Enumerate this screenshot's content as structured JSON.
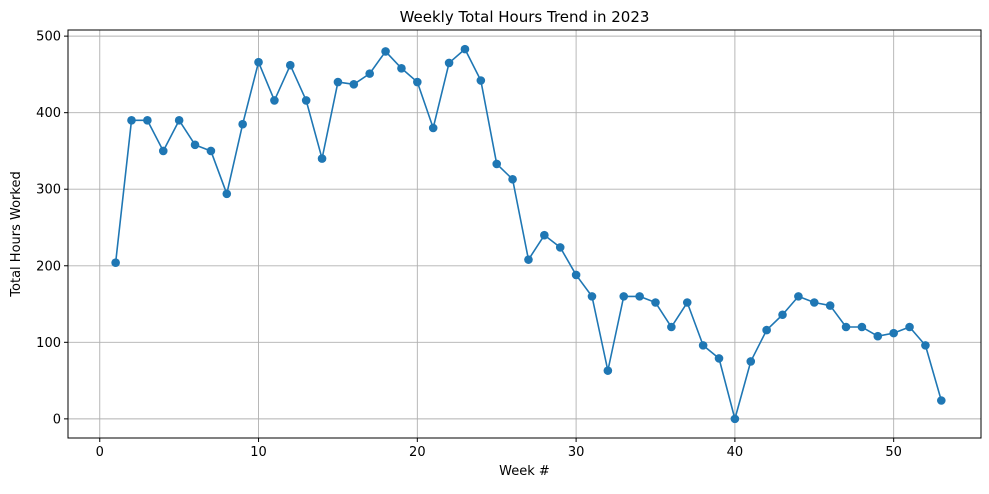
{
  "chart_data": {
    "type": "line",
    "title": "Weekly Total Hours Trend in 2023",
    "xlabel": "Week #",
    "ylabel": "Total Hours Worked",
    "xlim": [
      -2,
      55.5
    ],
    "ylim": [
      -25,
      508
    ],
    "xticks": [
      0,
      10,
      20,
      30,
      40,
      50
    ],
    "yticks": [
      0,
      100,
      200,
      300,
      400,
      500
    ],
    "grid": true,
    "legend": "none",
    "marker": "circle",
    "series": [
      {
        "color": "#1f77b4",
        "x": [
          1,
          2,
          3,
          4,
          5,
          6,
          7,
          8,
          9,
          10,
          11,
          12,
          13,
          14,
          15,
          16,
          17,
          18,
          19,
          20,
          21,
          22,
          23,
          24,
          25,
          26,
          27,
          28,
          29,
          30,
          31,
          32,
          33,
          34,
          35,
          36,
          37,
          38,
          39,
          40,
          41,
          42,
          43,
          44,
          45,
          46,
          47,
          48,
          49,
          50,
          51,
          52,
          53
        ],
        "y": [
          204,
          390,
          390,
          350,
          390,
          358,
          350,
          294,
          385,
          466,
          416,
          462,
          416,
          340,
          440,
          437,
          451,
          480,
          458,
          440,
          380,
          465,
          483,
          442,
          333,
          313,
          208,
          240,
          224,
          188,
          160,
          63,
          160,
          160,
          152,
          120,
          152,
          96,
          79,
          0,
          75,
          116,
          136,
          160,
          152,
          148,
          120,
          120,
          108,
          112,
          120,
          96,
          24
        ]
      }
    ]
  }
}
